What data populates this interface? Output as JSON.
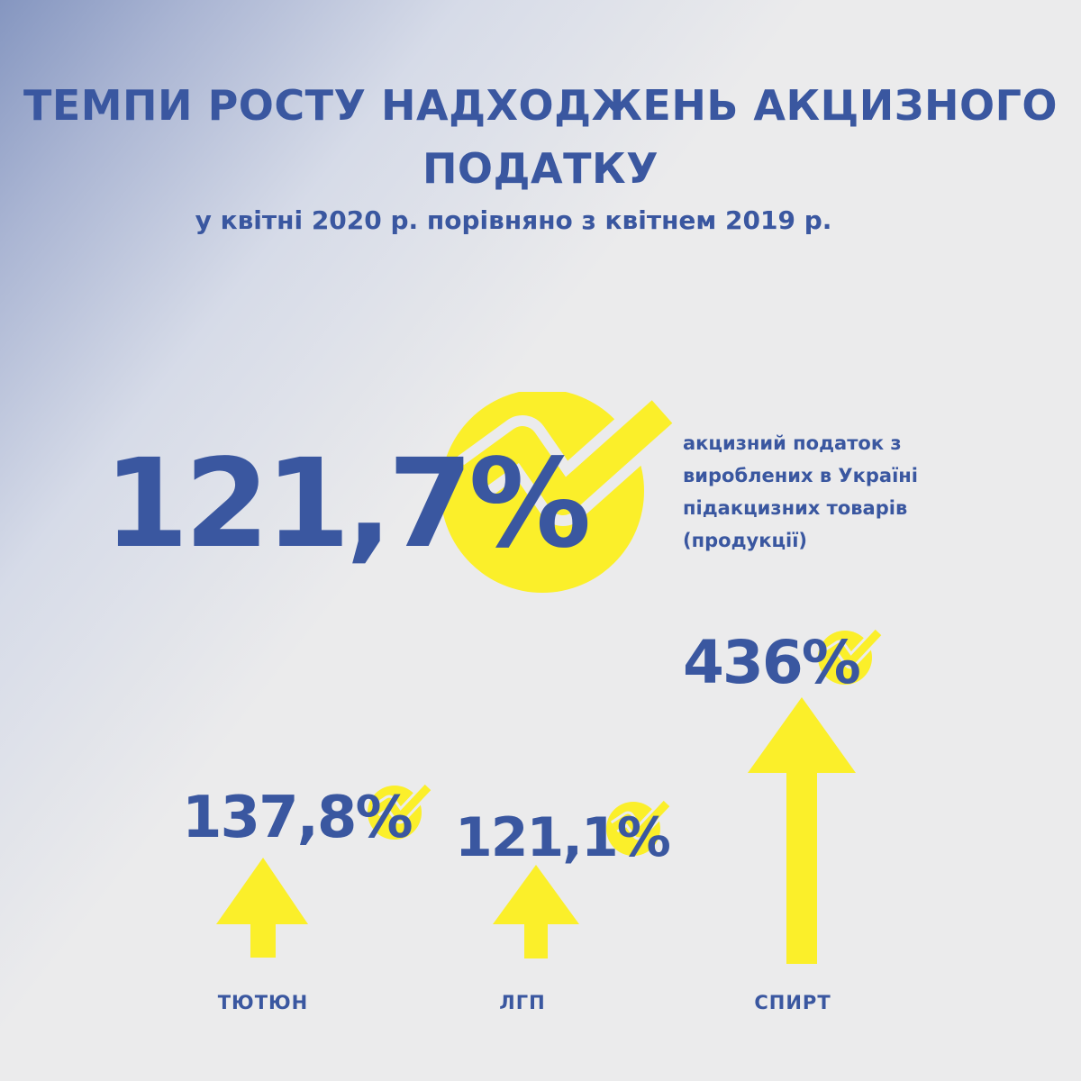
{
  "title_lines": [
    "ТЕМПИ РОСТУ НАДХОДЖЕНЬ АКЦИЗНОГО",
    "ПОДАТКУ"
  ],
  "subtitle": "у квітні 2020 р. порівняно з квітнем 2019 р.",
  "main": {
    "value": "121,7%",
    "description_lines": [
      "акцизний податок з",
      "вироблених в Україні",
      "підакцизних товарів",
      "(продукції)"
    ]
  },
  "categories": [
    {
      "label": "ТЮТЮН",
      "value": "137,8%"
    },
    {
      "label": "ЛГП",
      "value": "121,1%"
    },
    {
      "label": "СПИРТ",
      "value": "436%"
    }
  ],
  "colors": {
    "text": "#3a57a0",
    "accent_yellow": "#fbef2a",
    "background": "#ebebec",
    "gradient_corner": "#8596c0"
  },
  "icons": [
    "check-circle-icon",
    "arrow-up-icon"
  ]
}
